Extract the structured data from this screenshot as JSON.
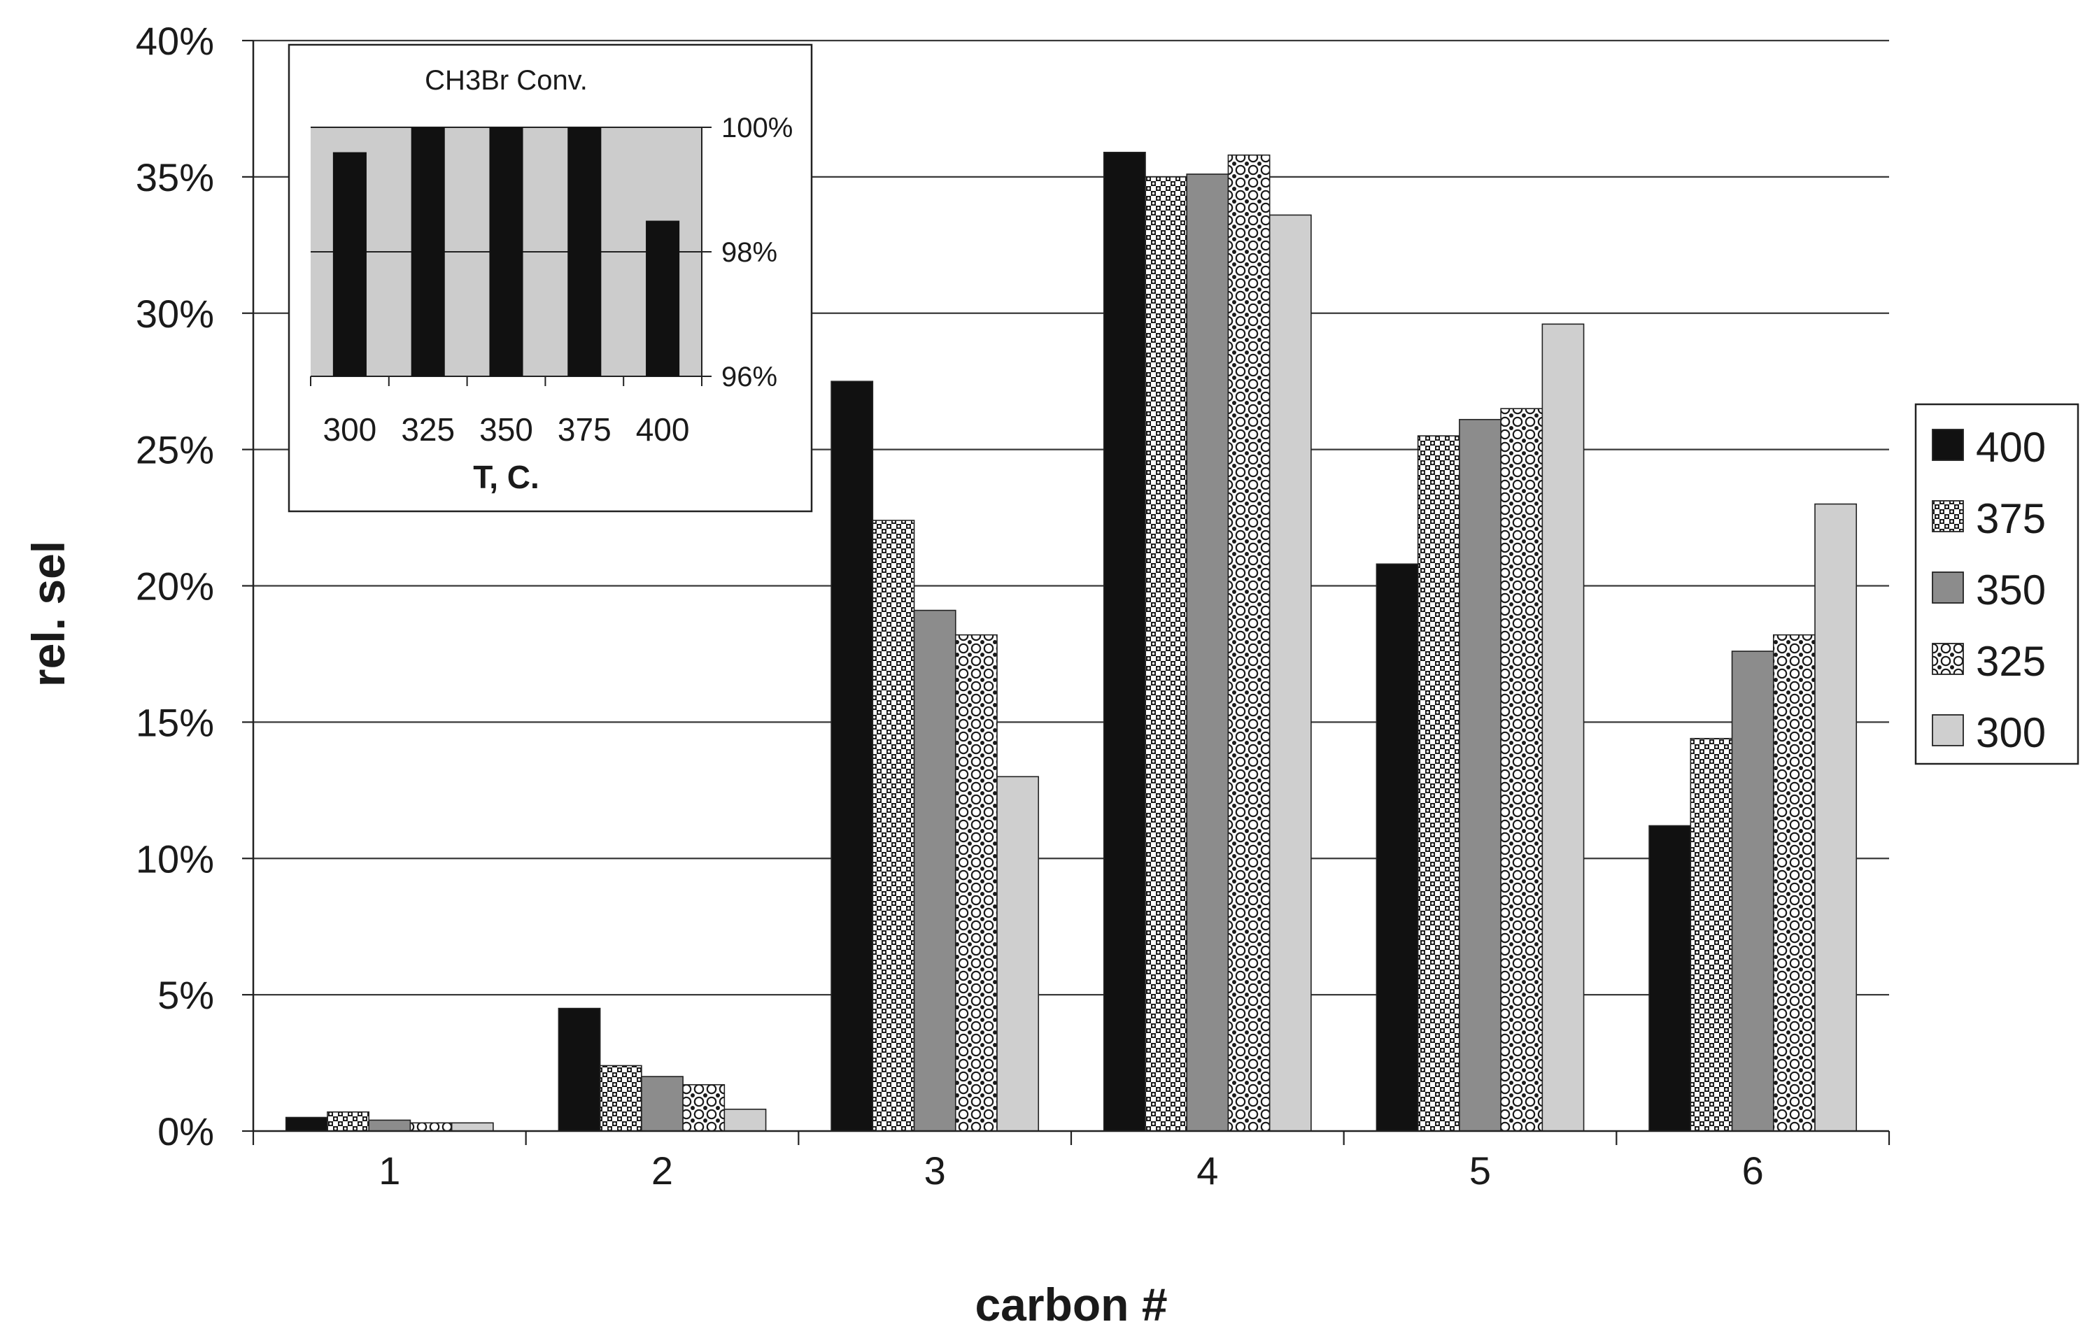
{
  "chart_data": [
    {
      "type": "bar",
      "xlabel": "carbon #",
      "ylabel": "rel. sel",
      "ylim": [
        0,
        40
      ],
      "y_tick_values": [
        0,
        5,
        10,
        15,
        20,
        25,
        30,
        35,
        40
      ],
      "y_tick_labels": [
        "0%",
        "5%",
        "10%",
        "15%",
        "20%",
        "25%",
        "30%",
        "35%",
        "40%"
      ],
      "categories": [
        "1",
        "2",
        "3",
        "4",
        "5",
        "6"
      ],
      "grid": "horizontal",
      "legend_position": "right",
      "series": [
        {
          "name": "400",
          "fill": "solid-black",
          "values": [
            0.5,
            4.5,
            27.5,
            35.9,
            20.8,
            11.2
          ]
        },
        {
          "name": "375",
          "fill": "dense-check",
          "values": [
            0.7,
            2.4,
            22.4,
            35.0,
            25.5,
            14.4
          ]
        },
        {
          "name": "350",
          "fill": "solid-gray",
          "values": [
            0.4,
            2.0,
            19.1,
            35.1,
            26.1,
            17.6
          ]
        },
        {
          "name": "325",
          "fill": "open-circles",
          "values": [
            0.3,
            1.7,
            18.2,
            35.8,
            26.5,
            18.2
          ]
        },
        {
          "name": "300",
          "fill": "light-gray",
          "values": [
            0.3,
            0.8,
            13.0,
            33.6,
            29.6,
            23.0
          ]
        }
      ],
      "colors": {
        "solid-black": "#111111",
        "solid-gray": "#8c8c8c",
        "light-gray": "#cfcfcf",
        "grid": "#3a3a3a"
      }
    },
    {
      "type": "bar",
      "title": "CH3Br Conv.",
      "xlabel": "T, C.",
      "ylabel": "",
      "ylim": [
        96,
        100
      ],
      "y_tick_values": [
        96,
        98,
        100
      ],
      "y_tick_labels": [
        "96%",
        "98%",
        "100%"
      ],
      "y_axis_side": "right",
      "categories": [
        "300",
        "325",
        "350",
        "375",
        "400"
      ],
      "values": [
        99.6,
        100,
        100,
        100,
        98.5
      ],
      "bar_color": "#111111",
      "plot_background": "#cccccc"
    }
  ]
}
